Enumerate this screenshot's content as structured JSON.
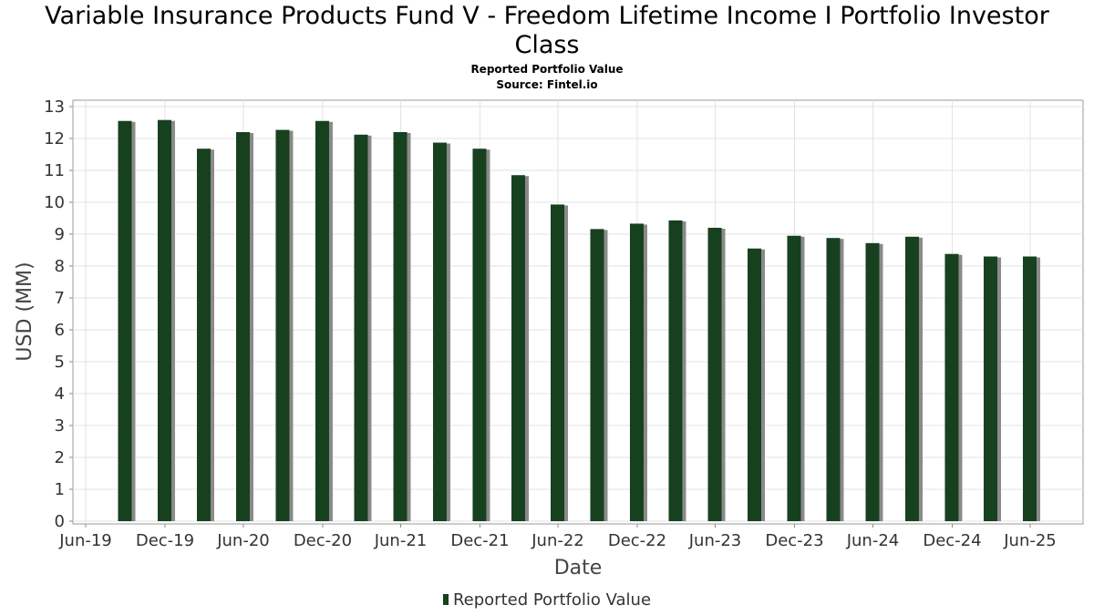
{
  "chart_data": {
    "type": "bar",
    "title": "Variable Insurance Products Fund V - Freedom Lifetime Income I Portfolio Investor Class",
    "title_line1": "Variable Insurance Products Fund V - Freedom Lifetime Income I Portfolio Investor",
    "title_line2": "Class",
    "subtitle": "Reported Portfolio Value",
    "source": "Source: Fintel.io",
    "xlabel": "Date",
    "ylabel": "USD (MM)",
    "ylim": [
      0,
      13
    ],
    "yticks": [
      "0",
      "1",
      "2",
      "3",
      "4",
      "5",
      "6",
      "7",
      "8",
      "9",
      "10",
      "11",
      "12",
      "13"
    ],
    "xticks": [
      "Jun-19",
      "Dec-19",
      "Jun-20",
      "Dec-20",
      "Jun-21",
      "Dec-21",
      "Jun-22",
      "Dec-22",
      "Jun-23",
      "Dec-23",
      "Jun-24",
      "Dec-24",
      "Jun-25"
    ],
    "grid": true,
    "legend_position": "bottom",
    "bar_color": "#17401f",
    "series": [
      {
        "name": "Reported Portfolio Value",
        "x": [
          "2019-09-30",
          "2019-12-31",
          "2020-03-31",
          "2020-06-30",
          "2020-09-30",
          "2020-12-31",
          "2021-03-31",
          "2021-06-30",
          "2021-09-30",
          "2021-12-31",
          "2022-03-31",
          "2022-06-30",
          "2022-09-30",
          "2022-12-31",
          "2023-03-31",
          "2023-06-30",
          "2023-09-30",
          "2023-12-31",
          "2024-03-31",
          "2024-06-30",
          "2024-09-30",
          "2024-12-31",
          "2025-03-31",
          "2025-06-30"
        ],
        "values": [
          12.55,
          12.58,
          11.68,
          12.2,
          12.27,
          12.55,
          12.12,
          12.2,
          11.87,
          11.68,
          10.85,
          9.93,
          9.16,
          9.33,
          9.43,
          9.2,
          8.55,
          8.95,
          8.88,
          8.72,
          8.92,
          8.38,
          8.3,
          8.3
        ]
      }
    ]
  }
}
